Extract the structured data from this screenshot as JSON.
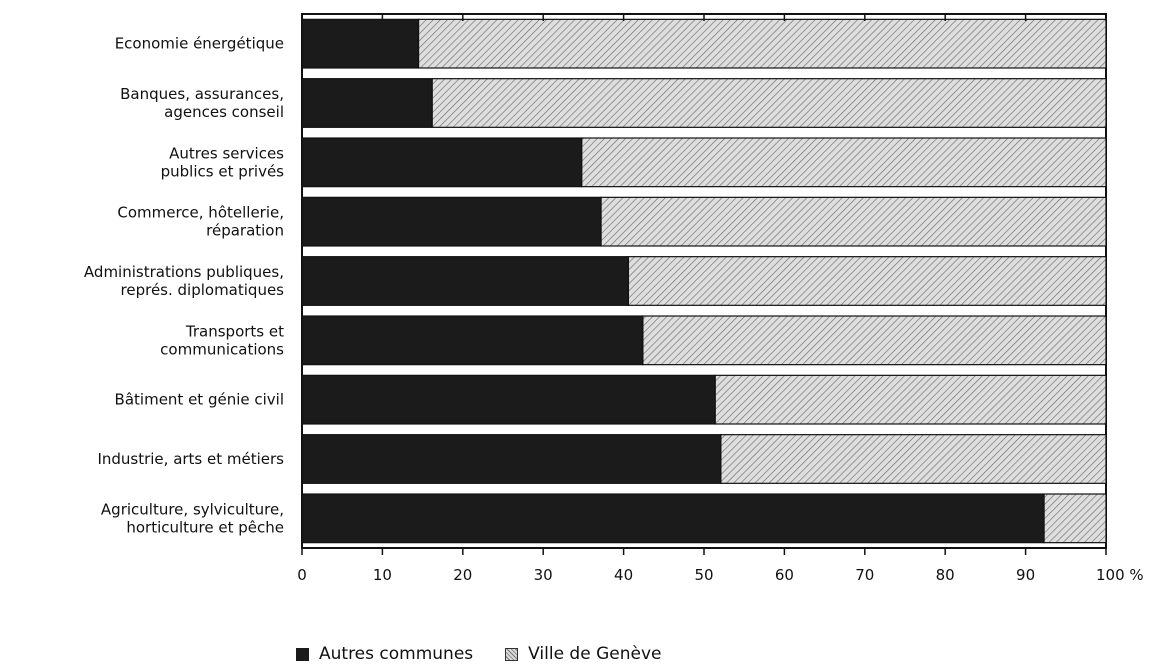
{
  "chart_data": {
    "type": "bar",
    "orientation": "horizontal",
    "stacked": true,
    "categories": [
      [
        "Economie énergétique"
      ],
      [
        "Banques, assurances,",
        "agences conseil"
      ],
      [
        "Autres services",
        "publics et privés"
      ],
      [
        "Commerce, hôtellerie,",
        "réparation"
      ],
      [
        "Administrations publiques,",
        "représ. diplomatiques"
      ],
      [
        "Transports et",
        "communications"
      ],
      [
        "Bâtiment et génie civil"
      ],
      [
        "Industrie, arts et métiers"
      ],
      [
        "Agriculture, sylviculture,",
        "horticulture et pêche"
      ]
    ],
    "series": [
      {
        "name": "Autres communes",
        "color": "#1b1b1b",
        "values": [
          14.5,
          16.2,
          34.8,
          37.2,
          40.6,
          42.4,
          51.4,
          52.1,
          92.3
        ]
      },
      {
        "name": "Ville de Genève",
        "color": "#d9d9d9",
        "pattern": "diagonal-hatch",
        "values": [
          85.5,
          83.8,
          65.2,
          62.8,
          59.4,
          57.6,
          48.6,
          47.9,
          7.7
        ]
      }
    ],
    "xticks": [
      "0",
      "10",
      "20",
      "30",
      "40",
      "50",
      "60",
      "70",
      "80",
      "90",
      "100 %"
    ],
    "xlim": [
      0,
      100
    ],
    "legend_position": "bottom"
  }
}
